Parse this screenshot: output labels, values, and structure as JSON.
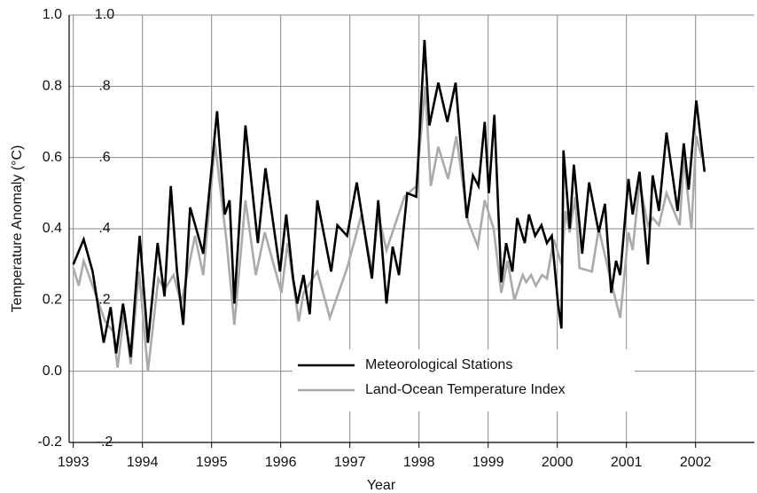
{
  "chart_data": {
    "type": "line",
    "xlabel": "Year",
    "ylabel": "Temperature Anomaly (°C)",
    "xlim": [
      1992.94,
      2002.85
    ],
    "xticks": [
      1993,
      1994,
      1995,
      1996,
      1997,
      1998,
      1999,
      2000,
      2001,
      2002
    ],
    "ylim": [
      -0.2,
      1.0
    ],
    "yticks": [
      {
        "value": -0.2,
        "label": "-0.2"
      },
      {
        "value": 0,
        "label": "0.0"
      },
      {
        "value": 0.2,
        "label": "0.2"
      },
      {
        "value": 0.4,
        "label": "0.4"
      },
      {
        "value": 0.6,
        "label": "0.6"
      },
      {
        "value": 0.8,
        "label": "0.8"
      },
      {
        "value": 1.0,
        "label": "1.0"
      }
    ],
    "y2lim": [
      -0.2,
      1.0
    ],
    "y2ticks": [
      {
        "value": -0.2,
        "label": "-.2"
      },
      {
        "value": 0.2,
        "label": ".2"
      },
      {
        "value": 0.4,
        "label": ".4"
      },
      {
        "value": 0.6,
        "label": ".6"
      },
      {
        "value": 0.8,
        "label": ".8"
      },
      {
        "value": 1.0,
        "label": "1.0"
      }
    ],
    "grid": true,
    "legend": "lower center",
    "series": [
      {
        "name": "Meteorological Stations",
        "color": "#000000",
        "x": [
          1993.0,
          1993.15,
          1993.28,
          1993.44,
          1993.54,
          1993.62,
          1993.72,
          1993.83,
          1993.96,
          1994.08,
          1994.22,
          1994.32,
          1994.41,
          1994.5,
          1994.59,
          1994.69,
          1994.88,
          1995.08,
          1995.19,
          1995.26,
          1995.33,
          1995.49,
          1995.67,
          1995.78,
          1995.99,
          1996.08,
          1996.18,
          1996.24,
          1996.33,
          1996.42,
          1996.53,
          1996.73,
          1996.82,
          1996.96,
          1997.1,
          1997.32,
          1997.41,
          1997.53,
          1997.62,
          1997.71,
          1997.83,
          1997.96,
          1998.08,
          1998.15,
          1998.28,
          1998.41,
          1998.53,
          1998.69,
          1998.78,
          1998.86,
          1998.95,
          1999.01,
          1999.09,
          1999.19,
          1999.26,
          1999.35,
          1999.42,
          1999.53,
          1999.59,
          1999.68,
          1999.77,
          1999.85,
          1999.92,
          2000.01,
          2000.06,
          2000.09,
          2000.18,
          2000.24,
          2000.36,
          2000.46,
          2000.6,
          2000.69,
          2000.78,
          2000.85,
          2000.91,
          2001.03,
          2001.09,
          2001.19,
          2001.31,
          2001.38,
          2001.47,
          2001.58,
          2001.74,
          2001.83,
          2001.9,
          2002.01,
          2002.13
        ],
        "values": [
          0.3,
          0.37,
          0.28,
          0.08,
          0.18,
          0.05,
          0.19,
          0.04,
          0.38,
          0.08,
          0.36,
          0.21,
          0.52,
          0.28,
          0.13,
          0.46,
          0.33,
          0.73,
          0.44,
          0.48,
          0.19,
          0.69,
          0.36,
          0.57,
          0.28,
          0.44,
          0.26,
          0.19,
          0.27,
          0.16,
          0.48,
          0.28,
          0.41,
          0.38,
          0.53,
          0.26,
          0.48,
          0.19,
          0.35,
          0.27,
          0.5,
          0.49,
          0.93,
          0.69,
          0.81,
          0.7,
          0.81,
          0.43,
          0.55,
          0.52,
          0.7,
          0.5,
          0.72,
          0.25,
          0.36,
          0.28,
          0.43,
          0.36,
          0.44,
          0.38,
          0.41,
          0.36,
          0.38,
          0.19,
          0.12,
          0.62,
          0.4,
          0.58,
          0.33,
          0.53,
          0.39,
          0.47,
          0.22,
          0.31,
          0.27,
          0.54,
          0.44,
          0.56,
          0.3,
          0.55,
          0.45,
          0.67,
          0.45,
          0.64,
          0.51,
          0.76,
          0.56
        ]
      },
      {
        "name": "Land-Ocean Temperature Index",
        "color": "#aaaaaa",
        "x": [
          1993.0,
          1993.08,
          1993.15,
          1993.28,
          1993.46,
          1993.58,
          1993.64,
          1993.74,
          1993.83,
          1993.95,
          1994.08,
          1994.23,
          1994.32,
          1994.45,
          1994.56,
          1994.76,
          1994.88,
          1995.05,
          1995.22,
          1995.33,
          1995.49,
          1995.64,
          1995.77,
          1996.01,
          1996.1,
          1996.26,
          1996.33,
          1996.53,
          1996.71,
          1996.96,
          1997.17,
          1997.32,
          1997.41,
          1997.53,
          1997.79,
          1997.96,
          1998.09,
          1998.17,
          1998.28,
          1998.42,
          1998.54,
          1998.71,
          1998.85,
          1998.95,
          1999.08,
          1999.19,
          1999.28,
          1999.38,
          1999.5,
          1999.55,
          1999.62,
          1999.69,
          1999.78,
          1999.85,
          1999.95,
          2000.06,
          2000.12,
          2000.18,
          2000.26,
          2000.32,
          2000.5,
          2000.6,
          2000.78,
          2000.91,
          2001.03,
          2001.09,
          2001.19,
          2001.31,
          2001.38,
          2001.47,
          2001.58,
          2001.77,
          2001.83,
          2001.94,
          2002.01,
          2002.09
        ],
        "values": [
          0.29,
          0.24,
          0.31,
          0.24,
          0.14,
          0.11,
          0.01,
          0.17,
          0.02,
          0.28,
          0.0,
          0.26,
          0.23,
          0.27,
          0.19,
          0.38,
          0.27,
          0.64,
          0.36,
          0.13,
          0.48,
          0.27,
          0.39,
          0.22,
          0.36,
          0.14,
          0.22,
          0.28,
          0.15,
          0.29,
          0.44,
          0.28,
          0.44,
          0.34,
          0.49,
          0.52,
          0.8,
          0.52,
          0.63,
          0.54,
          0.66,
          0.42,
          0.35,
          0.48,
          0.4,
          0.22,
          0.31,
          0.2,
          0.27,
          0.25,
          0.27,
          0.24,
          0.27,
          0.26,
          0.37,
          0.3,
          0.45,
          0.39,
          0.49,
          0.29,
          0.28,
          0.4,
          0.25,
          0.15,
          0.39,
          0.34,
          0.53,
          0.41,
          0.43,
          0.41,
          0.5,
          0.41,
          0.6,
          0.4,
          0.66,
          0.6
        ]
      }
    ]
  }
}
